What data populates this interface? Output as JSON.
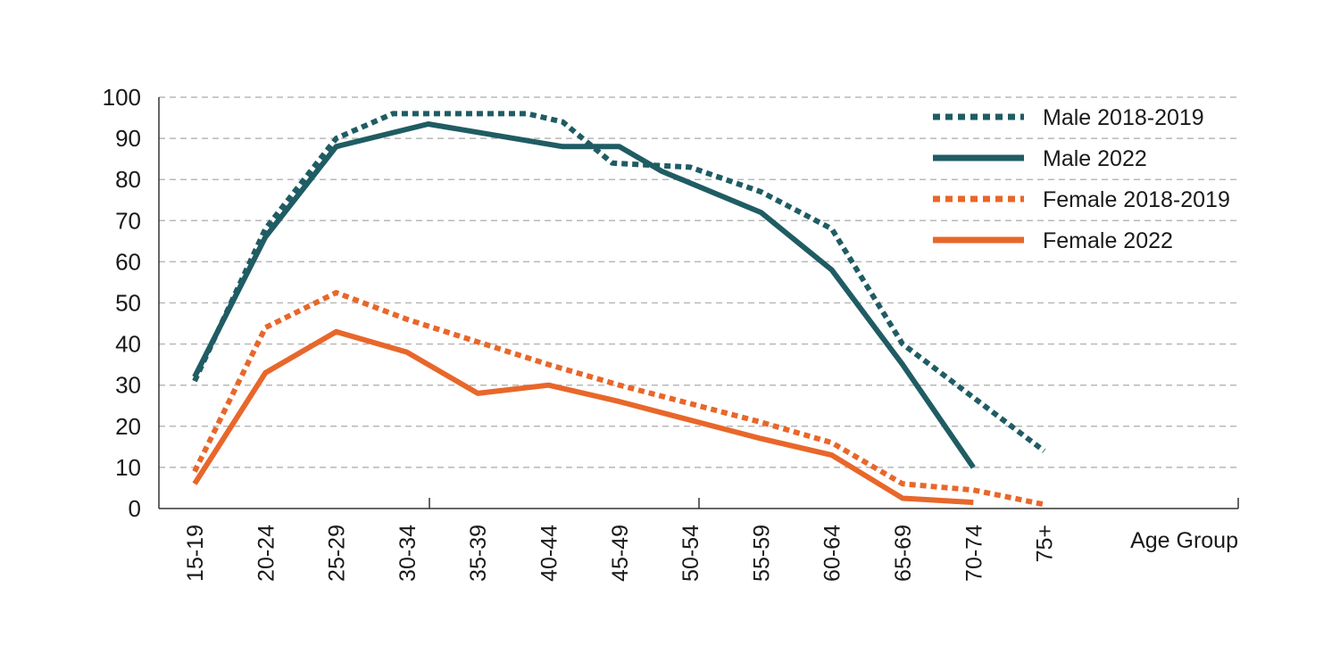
{
  "chart_data": {
    "type": "line",
    "title": "",
    "xlabel": "Age Group",
    "ylabel": "",
    "categories": [
      "15-19",
      "20-24",
      "25-29",
      "30-34",
      "35-39",
      "40-44",
      "45-49",
      "50-54",
      "55-59",
      "60-64",
      "65-69",
      "70-74",
      "75+"
    ],
    "ylim": [
      0,
      100
    ],
    "yticks": [
      0,
      10,
      20,
      30,
      40,
      50,
      60,
      70,
      80,
      90,
      100
    ],
    "grid": true,
    "legend_position": "top-right",
    "series": [
      {
        "name": "Male 2018-2019",
        "style": "dotted",
        "color": "#1f5c63",
        "points": [
          {
            "x": 0.0,
            "y": 31
          },
          {
            "x": 1.0,
            "y": 68
          },
          {
            "x": 2.0,
            "y": 90
          },
          {
            "x": 2.8,
            "y": 96
          },
          {
            "x": 4.7,
            "y": 96
          },
          {
            "x": 5.2,
            "y": 94
          },
          {
            "x": 5.9,
            "y": 84
          },
          {
            "x": 7.0,
            "y": 83
          },
          {
            "x": 8.0,
            "y": 77
          },
          {
            "x": 9.0,
            "y": 68
          },
          {
            "x": 10.0,
            "y": 40
          },
          {
            "x": 11.0,
            "y": 27
          },
          {
            "x": 12.0,
            "y": 14
          }
        ]
      },
      {
        "name": "Male 2022",
        "style": "solid",
        "color": "#1f5c63",
        "points": [
          {
            "x": 0.0,
            "y": 32
          },
          {
            "x": 1.0,
            "y": 66
          },
          {
            "x": 2.0,
            "y": 88
          },
          {
            "x": 3.3,
            "y": 93.5
          },
          {
            "x": 5.2,
            "y": 88
          },
          {
            "x": 6.0,
            "y": 88
          },
          {
            "x": 6.6,
            "y": 82
          },
          {
            "x": 8.0,
            "y": 72
          },
          {
            "x": 9.0,
            "y": 58
          },
          {
            "x": 10.0,
            "y": 35
          },
          {
            "x": 11.0,
            "y": 10
          }
        ]
      },
      {
        "name": "Female 2018-2019",
        "style": "dotted",
        "color": "#e8672a",
        "points": [
          {
            "x": 0.0,
            "y": 9
          },
          {
            "x": 1.0,
            "y": 44
          },
          {
            "x": 2.0,
            "y": 52.5
          },
          {
            "x": 3.0,
            "y": 46
          },
          {
            "x": 4.0,
            "y": 40.5
          },
          {
            "x": 5.0,
            "y": 35
          },
          {
            "x": 6.0,
            "y": 30
          },
          {
            "x": 7.0,
            "y": 25.5
          },
          {
            "x": 8.0,
            "y": 21
          },
          {
            "x": 9.0,
            "y": 16
          },
          {
            "x": 10.0,
            "y": 6
          },
          {
            "x": 11.0,
            "y": 4.5
          },
          {
            "x": 12.0,
            "y": 1
          }
        ]
      },
      {
        "name": "Female 2022",
        "style": "solid",
        "color": "#e8672a",
        "points": [
          {
            "x": 0.0,
            "y": 6
          },
          {
            "x": 1.0,
            "y": 33
          },
          {
            "x": 2.0,
            "y": 43
          },
          {
            "x": 3.0,
            "y": 38
          },
          {
            "x": 4.0,
            "y": 28
          },
          {
            "x": 5.0,
            "y": 30
          },
          {
            "x": 6.0,
            "y": 26
          },
          {
            "x": 7.0,
            "y": 21.5
          },
          {
            "x": 8.0,
            "y": 17
          },
          {
            "x": 9.0,
            "y": 13
          },
          {
            "x": 10.0,
            "y": 2.5
          },
          {
            "x": 11.0,
            "y": 1.5
          }
        ]
      }
    ]
  }
}
